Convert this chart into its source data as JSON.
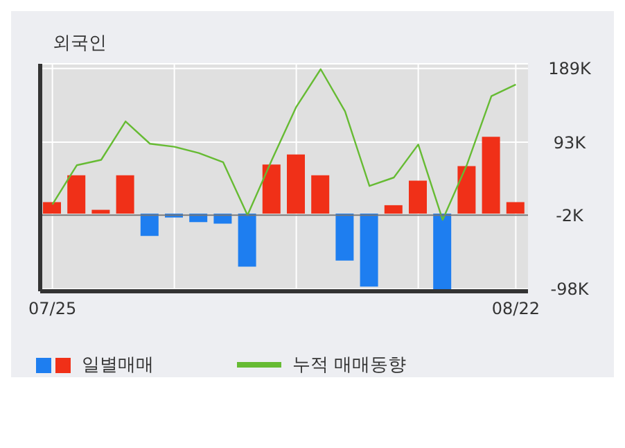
{
  "chart_data": {
    "type": "bar",
    "title": "외국인",
    "categories": [
      "07/25",
      null,
      null,
      null,
      null,
      null,
      null,
      null,
      null,
      null,
      null,
      null,
      null,
      null,
      null,
      null,
      null,
      null,
      null,
      "08/22"
    ],
    "series": [
      {
        "name": "일별매매",
        "colors": [
          "#f03018",
          "#f03018",
          "#f03018",
          "#f03018",
          "#1e7ef0",
          "#1e7ef0",
          "#1e7ef0",
          "#1e7ef0",
          "#1e7ef0",
          "#f03018",
          "#f03018",
          "#f03018",
          "#1e7ef0",
          "#1e7ef0",
          "#f03018",
          "#f03018",
          "#1e7ef0",
          "#f03018",
          "#f03018",
          "#f03018"
        ],
        "values": [
          15,
          50,
          5,
          50,
          -29,
          -5,
          -11,
          -13,
          -69,
          64,
          77,
          50,
          -61,
          -95,
          11,
          43,
          -100,
          62,
          100,
          15
        ]
      },
      {
        "name": "누적 매매동향",
        "type": "line",
        "color": "#66bb33",
        "values": [
          12,
          63,
          70,
          120,
          91,
          87,
          79,
          67,
          -2,
          70,
          139,
          188,
          133,
          36,
          47,
          90,
          -8,
          64,
          153,
          168
        ]
      }
    ],
    "ylim": [
      -101,
      195
    ],
    "yticks": [
      {
        "value": 189,
        "label": "189K"
      },
      {
        "value": 93,
        "label": "93K"
      },
      {
        "value": -2,
        "label": "-2K"
      },
      {
        "value": -98,
        "label": "-98K"
      }
    ],
    "ref_lines": [
      {
        "axis": "y",
        "value": -2,
        "color": "#777777"
      }
    ],
    "grid": true,
    "legend": "bottom",
    "marker": "none",
    "line_style": "solid"
  }
}
